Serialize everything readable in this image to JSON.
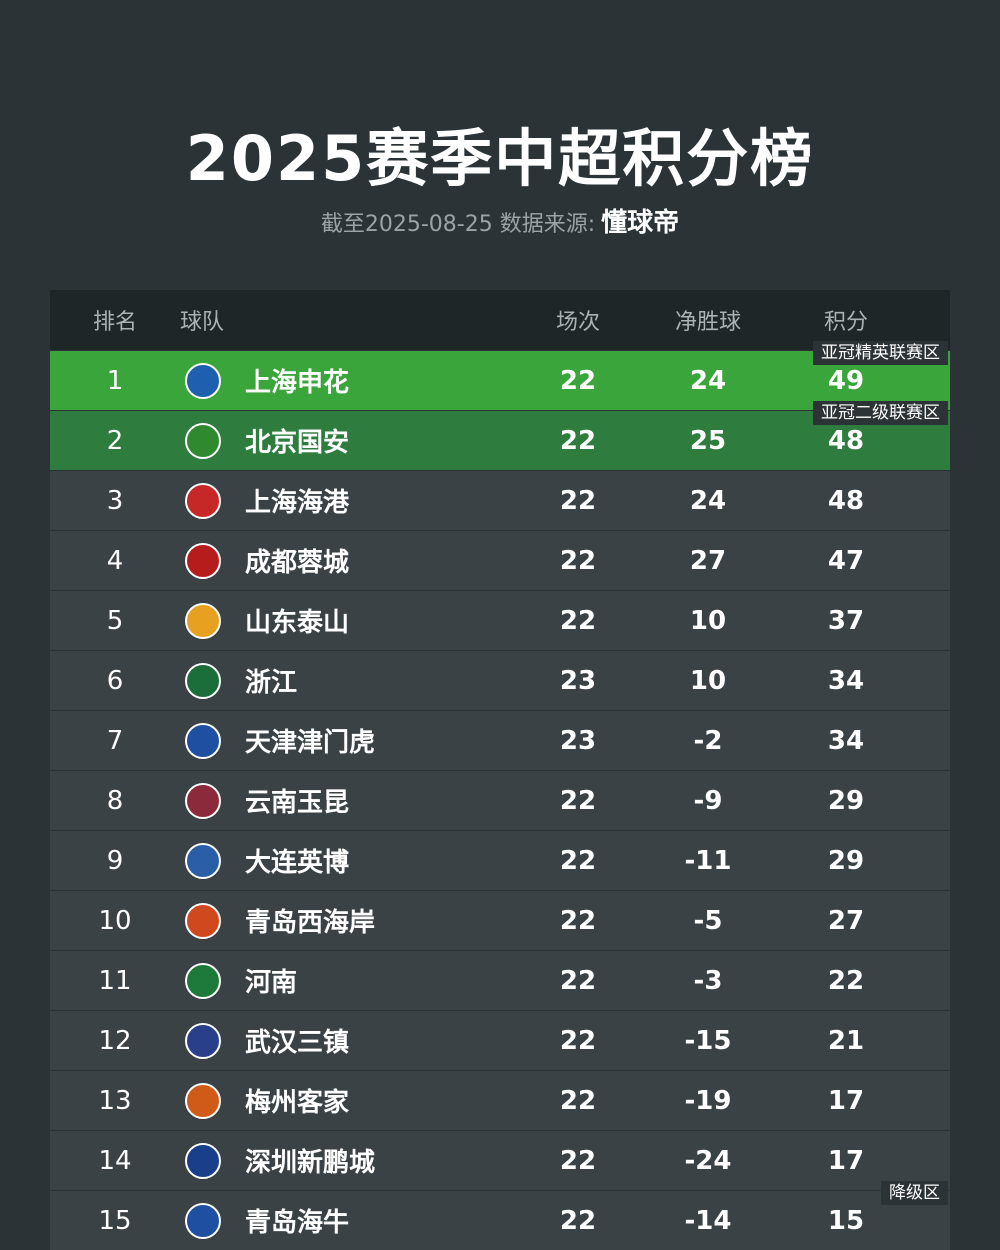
{
  "header": {
    "title": "2025赛季中超积分榜",
    "subtitle": "截至2025-08-25 数据来源:",
    "source": "懂球帝"
  },
  "table": {
    "columns": [
      "排名",
      "球队",
      "场次",
      "净胜球",
      "积分"
    ],
    "rows": [
      [
        1,
        "上海申花",
        22,
        24,
        49
      ],
      [
        2,
        "北京国安",
        22,
        25,
        48
      ],
      [
        3,
        "上海海港",
        22,
        24,
        48
      ],
      [
        4,
        "成都蓉城",
        22,
        27,
        47
      ],
      [
        5,
        "山东泰山",
        22,
        10,
        37
      ],
      [
        6,
        "浙江",
        23,
        10,
        34
      ],
      [
        7,
        "天津津门虎",
        23,
        -2,
        34
      ],
      [
        8,
        "云南玉昆",
        22,
        -9,
        29
      ],
      [
        9,
        "大连英博",
        22,
        -11,
        29
      ],
      [
        10,
        "青岛西海岸",
        22,
        -5,
        27
      ],
      [
        11,
        "河南",
        22,
        -3,
        22
      ],
      [
        12,
        "武汉三镇",
        22,
        -15,
        21
      ],
      [
        13,
        "梅州客家",
        22,
        -19,
        17
      ],
      [
        14,
        "深圳新鹏城",
        22,
        -24,
        17
      ],
      [
        15,
        "青岛海牛",
        22,
        -14,
        15
      ]
    ],
    "zones": [
      "亚冠精英联赛区",
      "亚冠二级联赛区",
      "降级区"
    ]
  }
}
